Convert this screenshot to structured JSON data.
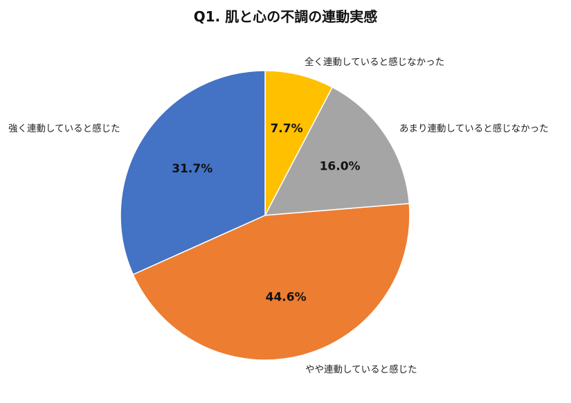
{
  "chart_data": {
    "type": "pie",
    "title": "Q1. 肌と心の不調の連動実感",
    "categories": [
      "全く連動していると感じなかった",
      "あまり連動していると感じなかった",
      "やや連動していると感じた",
      "強く連動していると感じた"
    ],
    "values": [
      7.7,
      16.0,
      44.6,
      31.7
    ],
    "value_labels": [
      "7.7%",
      "16.0%",
      "44.6%",
      "31.7%"
    ],
    "colors": [
      "#FFC000",
      "#A5A5A5",
      "#ED7D31",
      "#4472C4"
    ],
    "start_angle": "12 o'clock",
    "direction": "clockwise",
    "legend": "none (category labels beside slices)"
  }
}
